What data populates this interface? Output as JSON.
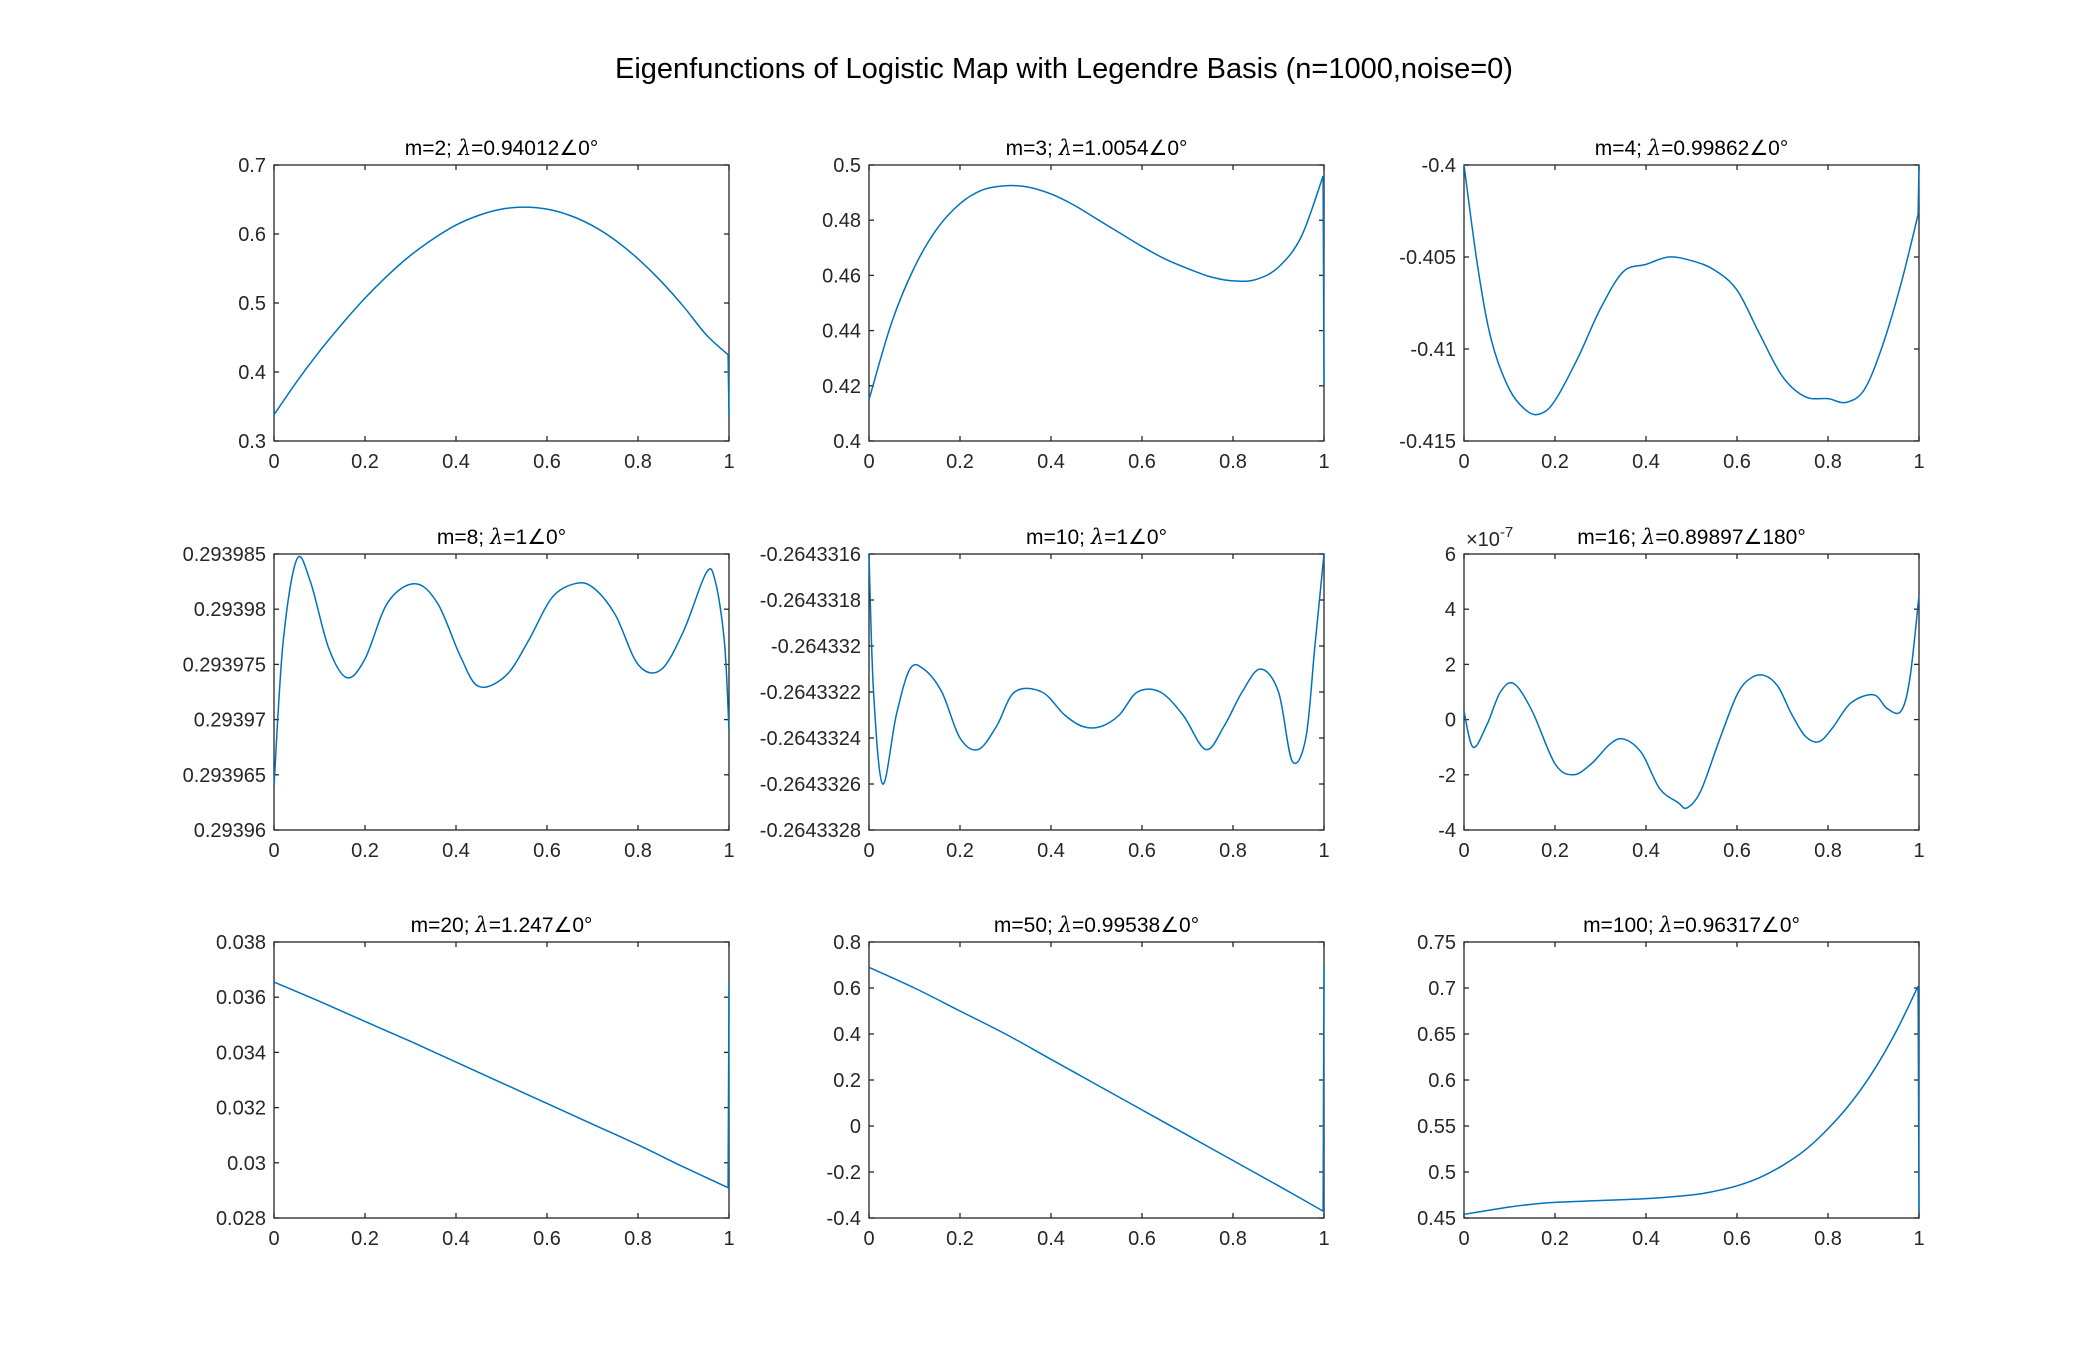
{
  "chart_data": {
    "title": "Eigenfunctions of Logistic Map with Legendre Basis (n=1000,noise=0)",
    "colors": {
      "line": "#0072BD",
      "axis": "#262626"
    },
    "subplots": [
      {
        "type": "line",
        "title_prefix": "m=2; ",
        "lambda_symbol": "λ",
        "title_value": "=0.94012∠0°",
        "xlim": [
          0,
          1
        ],
        "ylim": [
          0.3,
          0.7
        ],
        "xticks": [
          "0",
          "0.2",
          "0.4",
          "0.6",
          "0.8",
          "1"
        ],
        "yticks": [
          "0.3",
          "0.4",
          "0.5",
          "0.6",
          "0.7"
        ],
        "x": [
          0,
          0.05,
          0.1,
          0.15,
          0.2,
          0.25,
          0.3,
          0.35,
          0.4,
          0.45,
          0.5,
          0.55,
          0.6,
          0.65,
          0.7,
          0.75,
          0.8,
          0.85,
          0.9,
          0.95,
          0.998,
          1
        ],
        "y": [
          0.338,
          0.386,
          0.43,
          0.47,
          0.507,
          0.54,
          0.569,
          0.593,
          0.613,
          0.627,
          0.636,
          0.639,
          0.636,
          0.627,
          0.612,
          0.591,
          0.564,
          0.532,
          0.495,
          0.454,
          0.425,
          0.335
        ]
      },
      {
        "type": "line",
        "title_prefix": "m=3; ",
        "lambda_symbol": "λ",
        "title_value": "=1.0054∠0°",
        "xlim": [
          0,
          1
        ],
        "ylim": [
          0.4,
          0.5
        ],
        "xticks": [
          "0",
          "0.2",
          "0.4",
          "0.6",
          "0.8",
          "1"
        ],
        "yticks": [
          "0.4",
          "0.42",
          "0.44",
          "0.46",
          "0.48",
          "0.5"
        ],
        "x": [
          0,
          0.05,
          0.1,
          0.15,
          0.2,
          0.25,
          0.3,
          0.35,
          0.4,
          0.45,
          0.5,
          0.55,
          0.6,
          0.65,
          0.7,
          0.75,
          0.8,
          0.85,
          0.9,
          0.95,
          0.998,
          1
        ],
        "y": [
          0.415,
          0.443,
          0.463,
          0.477,
          0.486,
          0.491,
          0.4925,
          0.492,
          0.4895,
          0.4855,
          0.4805,
          0.4755,
          0.4705,
          0.466,
          0.4625,
          0.4595,
          0.458,
          0.4585,
          0.463,
          0.474,
          0.496,
          0.42
        ]
      },
      {
        "type": "line",
        "title_prefix": "m=4; ",
        "lambda_symbol": "λ",
        "title_value": "=0.99862∠0°",
        "xlim": [
          0,
          1
        ],
        "ylim": [
          -0.415,
          -0.4
        ],
        "xticks": [
          "0",
          "0.2",
          "0.4",
          "0.6",
          "0.8",
          "1"
        ],
        "yticks": [
          "-0.415",
          "-0.41",
          "-0.405",
          "-0.4"
        ],
        "x": [
          0,
          0.03,
          0.06,
          0.1,
          0.14,
          0.17,
          0.2,
          0.25,
          0.3,
          0.35,
          0.4,
          0.45,
          0.5,
          0.55,
          0.6,
          0.65,
          0.7,
          0.75,
          0.8,
          0.84,
          0.88,
          0.92,
          0.96,
          0.998,
          1
        ],
        "y": [
          -0.4,
          -0.4055,
          -0.4095,
          -0.4122,
          -0.4134,
          -0.4135,
          -0.4128,
          -0.4105,
          -0.4078,
          -0.4058,
          -0.4054,
          -0.405,
          -0.4052,
          -0.4057,
          -0.4068,
          -0.4092,
          -0.4115,
          -0.4126,
          -0.4127,
          -0.4129,
          -0.4122,
          -0.4098,
          -0.4065,
          -0.4027,
          -0.4
        ]
      },
      {
        "type": "line",
        "title_prefix": "m=8; ",
        "lambda_symbol": "λ",
        "title_value": "=1∠0°",
        "xlim": [
          0,
          1
        ],
        "ylim": [
          0.29396,
          0.293985
        ],
        "xticks": [
          "0",
          "0.2",
          "0.4",
          "0.6",
          "0.8",
          "1"
        ],
        "yticks": [
          "0.29396",
          "0.293965",
          "0.29397",
          "0.293975",
          "0.29398",
          "0.293985"
        ],
        "x": [
          0,
          0.02,
          0.05,
          0.08,
          0.12,
          0.16,
          0.2,
          0.25,
          0.31,
          0.36,
          0.41,
          0.45,
          0.51,
          0.56,
          0.61,
          0.66,
          0.7,
          0.75,
          0.8,
          0.85,
          0.9,
          0.95,
          0.97,
          0.99,
          1
        ],
        "y": [
          0.293964,
          0.293977,
          0.2939845,
          0.2939825,
          0.2939765,
          0.2939738,
          0.2939755,
          0.2939806,
          0.2939823,
          0.2939805,
          0.2939757,
          0.293973,
          0.293974,
          0.2939772,
          0.293981,
          0.2939823,
          0.293982,
          0.2939795,
          0.293975,
          0.2939745,
          0.293978,
          0.2939833,
          0.2939825,
          0.293977,
          0.293969
        ]
      },
      {
        "type": "line",
        "title_prefix": "m=10; ",
        "lambda_symbol": "λ",
        "title_value": "=1∠0°",
        "xlim": [
          0,
          1
        ],
        "ylim": [
          -0.2643328,
          -0.2643316
        ],
        "xticks": [
          "0",
          "0.2",
          "0.4",
          "0.6",
          "0.8",
          "1"
        ],
        "yticks": [
          "-0.2643328",
          "-0.2643326",
          "-0.2643324",
          "-0.2643322",
          "-0.264332",
          "-0.2643318",
          "-0.2643316"
        ],
        "x": [
          0,
          0.01,
          0.03,
          0.06,
          0.09,
          0.12,
          0.16,
          0.2,
          0.24,
          0.28,
          0.32,
          0.38,
          0.43,
          0.47,
          0.51,
          0.55,
          0.59,
          0.64,
          0.69,
          0.74,
          0.78,
          0.82,
          0.86,
          0.9,
          0.93,
          0.96,
          0.98,
          1
        ],
        "y": [
          -0.2643316,
          -0.2643322,
          -0.2643326,
          -0.2643323,
          -0.2643321,
          -0.2643321,
          -0.2643322,
          -0.2643324,
          -0.26433245,
          -0.26433235,
          -0.2643322,
          -0.2643322,
          -0.2643323,
          -0.26433235,
          -0.26433235,
          -0.2643323,
          -0.2643322,
          -0.2643322,
          -0.2643323,
          -0.26433245,
          -0.26433235,
          -0.2643322,
          -0.2643321,
          -0.2643322,
          -0.2643325,
          -0.2643324,
          -0.264332,
          -0.2643316
        ]
      },
      {
        "type": "line",
        "title_prefix": "m=16; ",
        "lambda_symbol": "λ",
        "title_value": "=0.89897∠180°",
        "exponent_label": "×10",
        "exponent_power": "-7",
        "xlim": [
          0,
          1
        ],
        "ylim": [
          -4,
          6
        ],
        "xticks": [
          "0",
          "0.2",
          "0.4",
          "0.6",
          "0.8",
          "1"
        ],
        "yticks": [
          "-4",
          "-2",
          "0",
          "2",
          "4",
          "6"
        ],
        "x": [
          0,
          0.02,
          0.05,
          0.08,
          0.11,
          0.15,
          0.2,
          0.24,
          0.28,
          0.32,
          0.35,
          0.39,
          0.43,
          0.47,
          0.49,
          0.52,
          0.56,
          0.6,
          0.63,
          0.66,
          0.69,
          0.72,
          0.75,
          0.78,
          0.81,
          0.85,
          0.9,
          0.93,
          0.96,
          0.98,
          1
        ],
        "y": [
          0.3,
          -1.0,
          -0.2,
          1.0,
          1.3,
          0.3,
          -1.6,
          -2.0,
          -1.6,
          -0.9,
          -0.7,
          -1.2,
          -2.5,
          -3.0,
          -3.2,
          -2.6,
          -0.8,
          0.9,
          1.5,
          1.6,
          1.2,
          0.2,
          -0.6,
          -0.8,
          -0.3,
          0.6,
          0.9,
          0.4,
          0.3,
          1.5,
          4.5
        ]
      },
      {
        "type": "line",
        "title_prefix": "m=20; ",
        "lambda_symbol": "λ",
        "title_value": "=1.247∠0°",
        "xlim": [
          0,
          1
        ],
        "ylim": [
          0.028,
          0.038
        ],
        "xticks": [
          "0",
          "0.2",
          "0.4",
          "0.6",
          "0.8",
          "1"
        ],
        "yticks": [
          "0.028",
          "0.03",
          "0.032",
          "0.034",
          "0.036",
          "0.038"
        ],
        "x": [
          0,
          0.1,
          0.2,
          0.3,
          0.4,
          0.5,
          0.6,
          0.7,
          0.8,
          0.9,
          0.998,
          1
        ],
        "y": [
          0.03655,
          0.03585,
          0.03512,
          0.0344,
          0.03365,
          0.0329,
          0.03215,
          0.0314,
          0.03065,
          0.02985,
          0.0291,
          0.0365
        ]
      },
      {
        "type": "line",
        "title_prefix": "m=50; ",
        "lambda_symbol": "λ",
        "title_value": "=0.99538∠0°",
        "xlim": [
          0,
          1
        ],
        "ylim": [
          -0.4,
          0.8
        ],
        "xticks": [
          "0",
          "0.2",
          "0.4",
          "0.6",
          "0.8",
          "1"
        ],
        "yticks": [
          "-0.4",
          "-0.2",
          "0",
          "0.2",
          "0.4",
          "0.6",
          "0.8"
        ],
        "x": [
          0,
          0.1,
          0.2,
          0.3,
          0.4,
          0.5,
          0.6,
          0.7,
          0.8,
          0.9,
          0.998,
          1
        ],
        "y": [
          0.69,
          0.6,
          0.5,
          0.4,
          0.29,
          0.18,
          0.07,
          -0.04,
          -0.15,
          -0.26,
          -0.37,
          0.7
        ]
      },
      {
        "type": "line",
        "title_prefix": "m=100; ",
        "lambda_symbol": "λ",
        "title_value": "=0.96317∠0°",
        "xlim": [
          0,
          1
        ],
        "ylim": [
          0.45,
          0.75
        ],
        "xticks": [
          "0",
          "0.2",
          "0.4",
          "0.6",
          "0.8",
          "1"
        ],
        "yticks": [
          "0.45",
          "0.5",
          "0.55",
          "0.6",
          "0.65",
          "0.7",
          "0.75"
        ],
        "x": [
          0,
          0.05,
          0.1,
          0.15,
          0.2,
          0.3,
          0.4,
          0.5,
          0.55,
          0.6,
          0.65,
          0.7,
          0.75,
          0.8,
          0.85,
          0.9,
          0.95,
          0.998,
          1
        ],
        "y": [
          0.454,
          0.458,
          0.462,
          0.465,
          0.467,
          0.469,
          0.471,
          0.475,
          0.479,
          0.485,
          0.494,
          0.507,
          0.524,
          0.547,
          0.575,
          0.61,
          0.653,
          0.702,
          0.455
        ]
      }
    ]
  }
}
